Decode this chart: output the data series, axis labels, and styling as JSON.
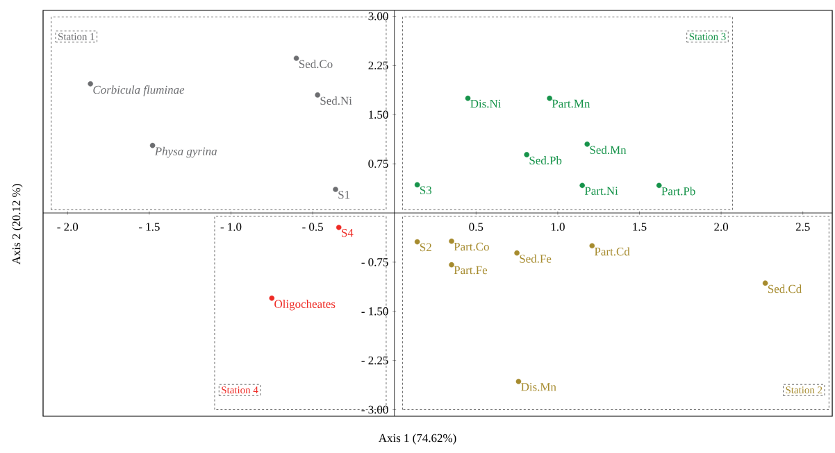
{
  "chart_data": {
    "type": "scatter",
    "xlabel": "Axis 1 (74.62%)",
    "ylabel": "Axis 2 (20.12 %)",
    "xlim": [
      -2.15,
      2.68
    ],
    "ylim": [
      -3.1,
      3.09
    ],
    "xticks": [
      {
        "value": -2,
        "label": "- 2.0"
      },
      {
        "value": -1.5,
        "label": "- 1.5"
      },
      {
        "value": -1,
        "label": "- 1.0"
      },
      {
        "value": -0.5,
        "label": "- 0.5"
      },
      {
        "value": 0.5,
        "label": "0.5"
      },
      {
        "value": 1,
        "label": "1.0"
      },
      {
        "value": 1.5,
        "label": "1.5"
      },
      {
        "value": 2,
        "label": "2.0"
      },
      {
        "value": 2.5,
        "label": "2.5"
      }
    ],
    "yticks": [
      {
        "value": 3,
        "label": "3.00"
      },
      {
        "value": 2.25,
        "label": "2.25"
      },
      {
        "value": 1.5,
        "label": "1.50"
      },
      {
        "value": 0.75,
        "label": "0.75"
      },
      {
        "value": -0.75,
        "label": "- 0.75"
      },
      {
        "value": -1.5,
        "label": "- 1.50"
      },
      {
        "value": -2.25,
        "label": "- 2.25"
      },
      {
        "value": -3,
        "label": "- 3.00"
      }
    ],
    "marker": "circle",
    "series": [
      {
        "name": "Station 1",
        "color": "#6d6e71",
        "x": [
          -0.6,
          -0.47,
          -1.86,
          -1.48,
          -0.36
        ],
        "values": [
          2.36,
          1.8,
          1.97,
          1.03,
          0.36
        ]
      },
      {
        "name": "Station 3",
        "color": "#16934a",
        "x": [
          0.45,
          0.95,
          1.18,
          0.81,
          0.14,
          1.15,
          1.62
        ],
        "values": [
          1.75,
          1.75,
          1.05,
          0.89,
          0.43,
          0.42,
          0.42
        ]
      },
      {
        "name": "Station 4",
        "color": "#ee2a24",
        "x": [
          -0.34,
          -0.75
        ],
        "values": [
          -0.22,
          -1.3
        ]
      },
      {
        "name": "Station 2",
        "color": "#a68b2e",
        "x": [
          0.14,
          0.35,
          0.35,
          0.75,
          1.21,
          2.27,
          0.76
        ],
        "values": [
          -0.44,
          -0.43,
          -0.79,
          -0.61,
          -0.5,
          -1.07,
          -2.57
        ]
      }
    ],
    "annotations": [
      {
        "text": "Sed.Co",
        "x": -0.6,
        "y": 2.36
      },
      {
        "text": "Sed.Ni",
        "x": -0.47,
        "y": 1.8
      },
      {
        "text": "*Corbicula fluminae*",
        "x": -1.86,
        "y": 1.97
      },
      {
        "text": "*Physa gyrina*",
        "x": -1.48,
        "y": 1.03
      },
      {
        "text": "S1",
        "x": -0.36,
        "y": 0.36
      },
      {
        "text": "Dis.Ni",
        "x": 0.45,
        "y": 1.75
      },
      {
        "text": "Part.Mn",
        "x": 0.95,
        "y": 1.75
      },
      {
        "text": "Sed.Mn",
        "x": 1.18,
        "y": 1.05
      },
      {
        "text": "Sed.Pb",
        "x": 0.81,
        "y": 0.89
      },
      {
        "text": "S3",
        "x": 0.14,
        "y": 0.43
      },
      {
        "text": "Part.Ni",
        "x": 1.15,
        "y": 0.42
      },
      {
        "text": "Part.Pb",
        "x": 1.62,
        "y": 0.42
      },
      {
        "text": "S4",
        "x": -0.34,
        "y": -0.22
      },
      {
        "text": "Oligocheates",
        "x": -0.75,
        "y": -1.3
      },
      {
        "text": "S2",
        "x": 0.14,
        "y": -0.44
      },
      {
        "text": "Part.Co",
        "x": 0.35,
        "y": -0.43
      },
      {
        "text": "Part.Fe",
        "x": 0.35,
        "y": -0.79
      },
      {
        "text": "Sed.Fe",
        "x": 0.75,
        "y": -0.61
      },
      {
        "text": "Part.Cd",
        "x": 1.21,
        "y": -0.5
      },
      {
        "text": "Sed.Cd",
        "x": 2.27,
        "y": -1.07
      },
      {
        "text": "Dis.Mn",
        "x": 0.76,
        "y": -2.57
      }
    ]
  }
}
